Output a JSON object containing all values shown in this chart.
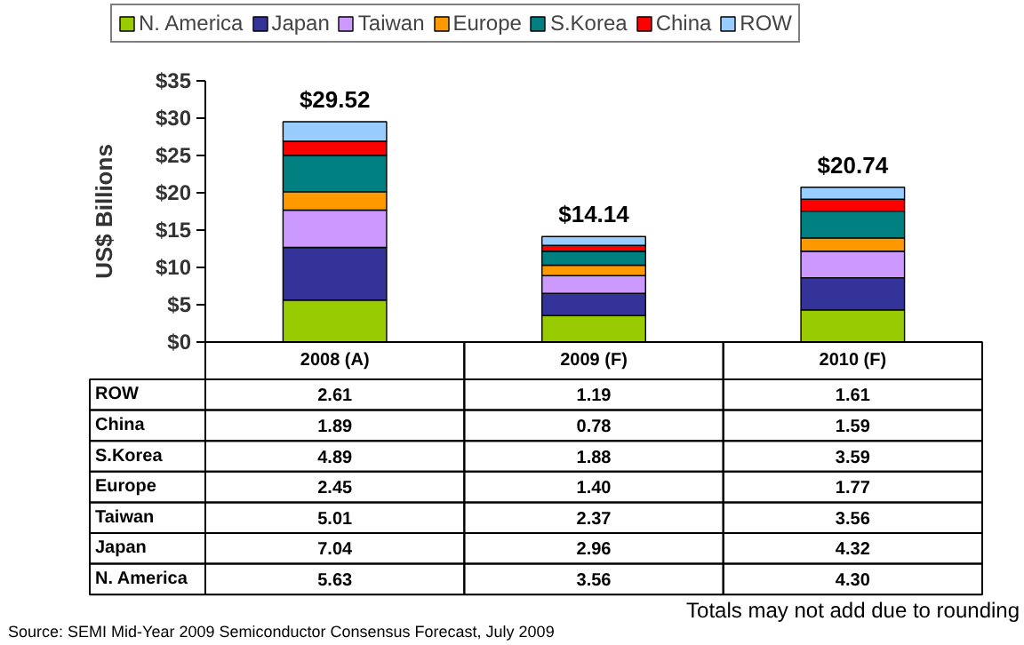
{
  "chart_data": {
    "type": "bar",
    "stacked": true,
    "ylabel": "US$ Billions",
    "categories": [
      "2008 (A)",
      "2009 (F)",
      "2010 (F)"
    ],
    "series": [
      {
        "name": "N. America",
        "color": "#99cc00",
        "values": [
          5.63,
          3.56,
          4.3
        ],
        "value_labels": [
          "5.63",
          "3.56",
          "4.30"
        ]
      },
      {
        "name": "Japan",
        "color": "#333399",
        "values": [
          7.04,
          2.96,
          4.32
        ],
        "value_labels": [
          "7.04",
          "2.96",
          "4.32"
        ]
      },
      {
        "name": "Taiwan",
        "color": "#cc99ff",
        "values": [
          5.01,
          2.37,
          3.56
        ],
        "value_labels": [
          "5.01",
          "2.37",
          "3.56"
        ]
      },
      {
        "name": "Europe",
        "color": "#ff9900",
        "values": [
          2.45,
          1.4,
          1.77
        ],
        "value_labels": [
          "2.45",
          "1.40",
          "1.77"
        ]
      },
      {
        "name": "S.Korea",
        "color": "#008080",
        "values": [
          4.89,
          1.88,
          3.59
        ],
        "value_labels": [
          "4.89",
          "1.88",
          "3.59"
        ]
      },
      {
        "name": "China",
        "color": "#ff0000",
        "values": [
          1.89,
          0.78,
          1.59
        ],
        "value_labels": [
          "1.89",
          "0.78",
          "1.59"
        ]
      },
      {
        "name": "ROW",
        "color": "#99ccff",
        "values": [
          2.61,
          1.19,
          1.61
        ],
        "value_labels": [
          "2.61",
          "1.19",
          "1.61"
        ]
      }
    ],
    "totals": [
      "$29.52",
      "$14.14",
      "$20.74"
    ],
    "ylim": [
      0,
      35
    ],
    "yticks": [
      {
        "value": 0,
        "label": "$0"
      },
      {
        "value": 5,
        "label": "$5"
      },
      {
        "value": 10,
        "label": "$10"
      },
      {
        "value": 15,
        "label": "$15"
      },
      {
        "value": 20,
        "label": "$20"
      },
      {
        "value": 25,
        "label": "$25"
      },
      {
        "value": 30,
        "label": "$30"
      },
      {
        "value": 35,
        "label": "$35"
      }
    ],
    "grid": false,
    "legend": "top",
    "annotations": [
      "Totals may not add due to rounding",
      "Source: SEMI Mid-Year 2009 Semiconductor Consensus Forecast, July 2009"
    ]
  }
}
